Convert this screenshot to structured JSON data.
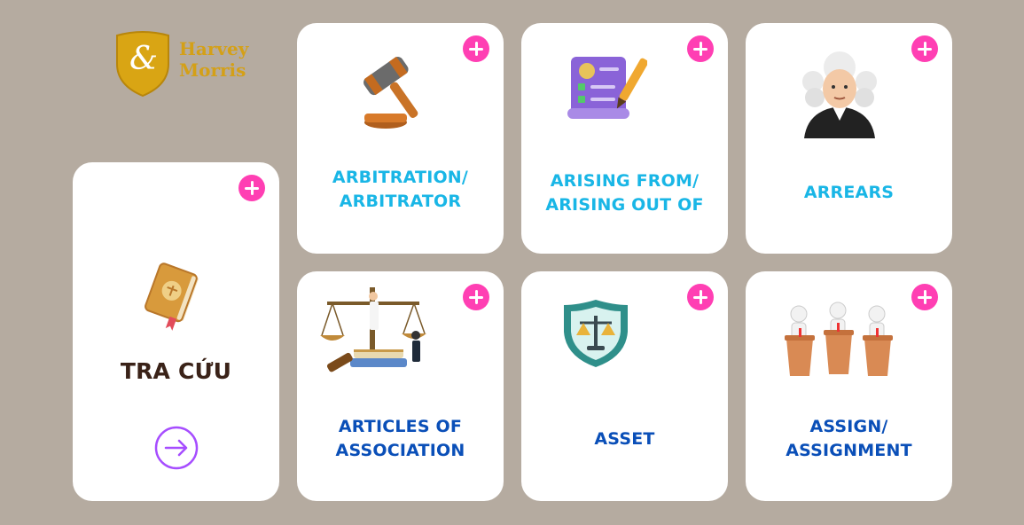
{
  "brand": {
    "logo_symbol": "&",
    "name_line1": "Harvey",
    "name_line2": "Morris",
    "color": "#d4a017"
  },
  "colors": {
    "background": "#b5aba0",
    "plus": "#ff3fb3",
    "title_cyan": "#19b6e6",
    "title_blue": "#0a4fb8",
    "tra_cuu_text": "#3a2218",
    "arrow": "#a64dff"
  },
  "lookup": {
    "title": "TRA CỨU",
    "icon": "law-book-icon",
    "arrow_icon": "arrow-right-circle-icon"
  },
  "cards": [
    {
      "line1": "ARBITRATION/",
      "line2": "ARBITRATOR",
      "icon": "gavel-icon"
    },
    {
      "line1": "ARISING FROM/",
      "line2": "ARISING OUT OF",
      "icon": "document-pen-icon"
    },
    {
      "line1": "ARREARS",
      "line2": "",
      "icon": "judge-icon"
    },
    {
      "line1": "ARTICLES OF",
      "line2": "ASSOCIATION",
      "icon": "scales-books-icon"
    },
    {
      "line1": "ASSET",
      "line2": "",
      "icon": "shield-scales-icon"
    },
    {
      "line1": "ASSIGN/",
      "line2": "ASSIGNMENT",
      "icon": "podium-people-icon"
    }
  ]
}
